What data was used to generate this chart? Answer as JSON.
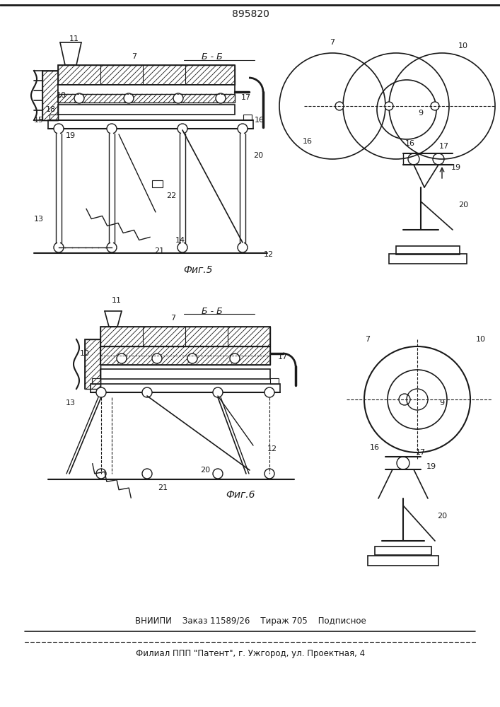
{
  "patent_number": "895820",
  "fig5_label": "Фиг.5",
  "fig6_label": "Фиг.6",
  "section_label": "Б - Б",
  "bottom_line1": "ВНИИПИ    Заказ 11589/26    Тираж 705    Подписное",
  "bottom_line2": "Филиал ППП \"Патент\", г. Ужгород, ул. Проектная, 4",
  "bg_color": "#ffffff",
  "line_color": "#1a1a1a"
}
